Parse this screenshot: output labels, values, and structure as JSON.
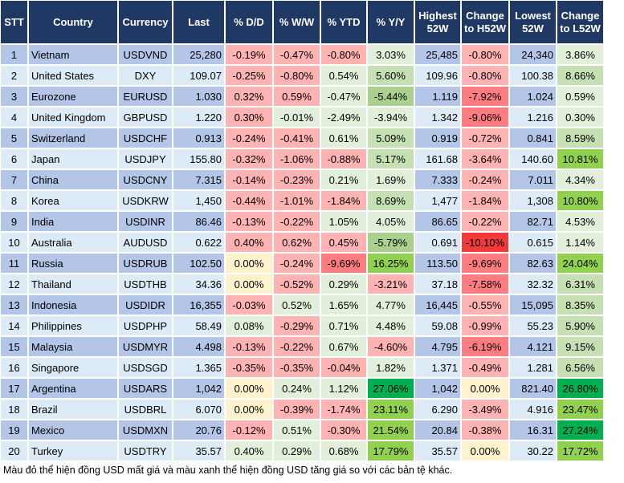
{
  "headers": [
    "STT",
    "Country",
    "Currency",
    "Last",
    "% D/D",
    "% W/W",
    "% YTD",
    "% Y/Y",
    "Highest 52W",
    "Change to H52W",
    "Lowest 52W",
    "Change to L52W"
  ],
  "colors": {
    "r": "#ffb3b3",
    "R": "#ff7c80",
    "X": "#f33a3a",
    "g": "#e2efda",
    "G": "#c6e0b4",
    "H": "#a9d08e",
    "B": "#92d050",
    "D": "#00b050",
    "y": "#fff2cc"
  },
  "rows": [
    [
      "1",
      "Vietnam",
      "USDVND",
      "25,280",
      "-0.19%",
      "-0.47%",
      "-0.80%",
      "3.03%",
      "25,485",
      "-0.80%",
      "24,340",
      "3.86%"
    ],
    [
      "2",
      "United States",
      "DXY",
      "109.07",
      "-0.25%",
      "-0.80%",
      "0.54%",
      "5.60%",
      "109.96",
      "-0.80%",
      "100.38",
      "8.66%"
    ],
    [
      "3",
      "Eurozone",
      "EURUSD",
      "1.030",
      "0.32%",
      "0.59%",
      "-0.47%",
      "-5.44%",
      "1.119",
      "-7.92%",
      "1.024",
      "0.59%"
    ],
    [
      "4",
      "United Kingdom",
      "GBPUSD",
      "1.220",
      "0.30%",
      "-0.01%",
      "-2.49%",
      "-3.94%",
      "1.342",
      "-9.06%",
      "1.216",
      "0.30%"
    ],
    [
      "5",
      "Switzerland",
      "USDCHF",
      "0.913",
      "-0.24%",
      "-0.41%",
      "0.61%",
      "5.09%",
      "0.919",
      "-0.72%",
      "0.841",
      "8.59%"
    ],
    [
      "6",
      "Japan",
      "USDJPY",
      "155.80",
      "-0.32%",
      "-1.06%",
      "-0.88%",
      "5.17%",
      "161.68",
      "-3.64%",
      "140.60",
      "10.81%"
    ],
    [
      "7",
      "China",
      "USDCNY",
      "7.315",
      "-0.14%",
      "-0.23%",
      "0.21%",
      "1.69%",
      "7.333",
      "-0.24%",
      "7.011",
      "4.34%"
    ],
    [
      "8",
      "Korea",
      "USDKRW",
      "1,450",
      "-0.44%",
      "-1.01%",
      "-1.84%",
      "8.69%",
      "1,477",
      "-1.84%",
      "1,308",
      "10.80%"
    ],
    [
      "9",
      "India",
      "USDINR",
      "86.46",
      "-0.13%",
      "-0.22%",
      "1.05%",
      "4.05%",
      "86.65",
      "-0.22%",
      "82.71",
      "4.53%"
    ],
    [
      "10",
      "Australia",
      "AUDUSD",
      "0.622",
      "0.40%",
      "0.62%",
      "0.45%",
      "-5.79%",
      "0.691",
      "-10.10%",
      "0.615",
      "1.14%"
    ],
    [
      "11",
      "Russia",
      "USDRUB",
      "102.50",
      "0.00%",
      "-0.24%",
      "-9.69%",
      "16.25%",
      "113.50",
      "-9.69%",
      "82.63",
      "24.04%"
    ],
    [
      "12",
      "Thailand",
      "USDTHB",
      "34.36",
      "0.00%",
      "-0.52%",
      "0.29%",
      "-3.21%",
      "37.18",
      "-7.58%",
      "32.32",
      "6.31%"
    ],
    [
      "13",
      "Indonesia",
      "USDIDR",
      "16,355",
      "-0.03%",
      "0.52%",
      "1.65%",
      "4.77%",
      "16,445",
      "-0.55%",
      "15,095",
      "8.35%"
    ],
    [
      "14",
      "Philippines",
      "USDPHP",
      "58.49",
      "0.08%",
      "-0.29%",
      "0.71%",
      "4.48%",
      "59.08",
      "-0.99%",
      "55.23",
      "5.90%"
    ],
    [
      "15",
      "Malaysia",
      "USDMYR",
      "4.498",
      "-0.13%",
      "-0.22%",
      "0.67%",
      "-4.60%",
      "4.795",
      "-6.19%",
      "4.121",
      "9.15%"
    ],
    [
      "16",
      "Singapore",
      "USDSGD",
      "1.365",
      "-0.35%",
      "-0.35%",
      "-0.04%",
      "1.82%",
      "1.371",
      "-0.49%",
      "1.281",
      "6.56%"
    ],
    [
      "17",
      "Argentina",
      "USDARS",
      "1,042",
      "0.00%",
      "0.24%",
      "1.12%",
      "27.06%",
      "1,042",
      "0.00%",
      "821.40",
      "26.80%"
    ],
    [
      "18",
      "Brazil",
      "USDBRL",
      "6.070",
      "0.00%",
      "-0.39%",
      "-1.74%",
      "23.11%",
      "6.290",
      "-3.49%",
      "4.916",
      "23.47%"
    ],
    [
      "19",
      "Mexico",
      "USDMXN",
      "20.76",
      "-0.12%",
      "0.51%",
      "-0.30%",
      "21.54%",
      "20.84",
      "-0.38%",
      "16.31",
      "27.24%"
    ],
    [
      "20",
      "Turkey",
      "USDTRY",
      "35.57",
      "0.40%",
      "0.29%",
      "0.68%",
      "17.79%",
      "35.57",
      "0.00%",
      "30.22",
      "17.72%"
    ]
  ],
  "cell_colors": [
    "rrrg r g",
    "rrgG r G",
    "rrgH R g",
    "rggg R g",
    "rrgG r G",
    "rrrG r B",
    "rrgg r g",
    "rrrG r B",
    "rrgg r g",
    "rrrH X g",
    "yrRB R B",
    "yrgr R G",
    "rggg r G",
    "grgg r G",
    "rrgr R G",
    "rrrg r G",
    "yggD y D",
    "yrrB r B",
    "rgrB r D",
    "gggB y B"
  ],
  "footer": "Màu đỏ thể hiện đồng USD mất giá và màu xanh thể hiện đồng USD tăng giá so với các bản tệ khác."
}
